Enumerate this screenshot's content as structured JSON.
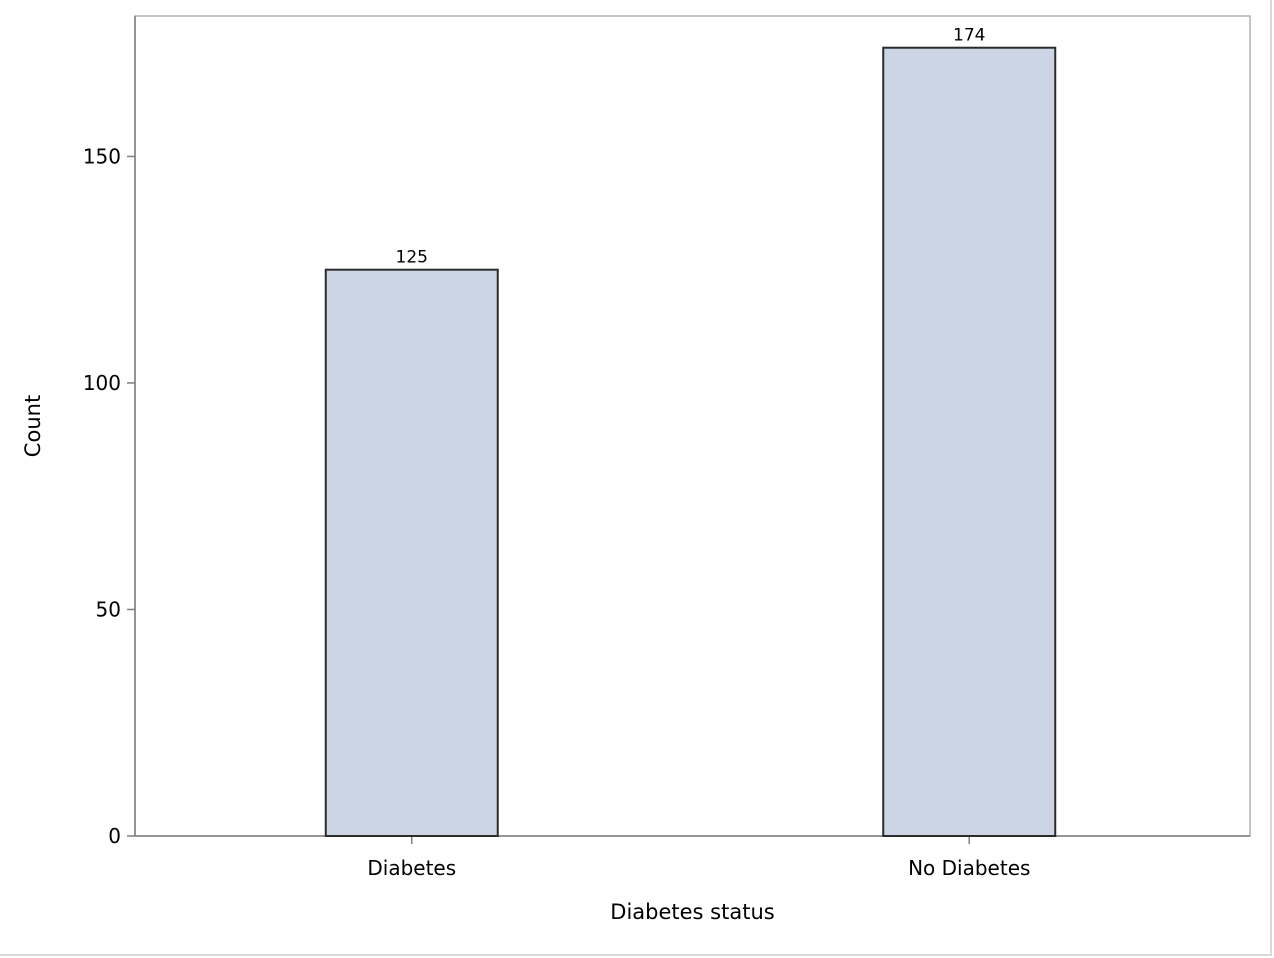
{
  "chart_data": {
    "type": "bar",
    "categories": [
      "Diabetes",
      "No Diabetes"
    ],
    "values": [
      125,
      174
    ],
    "data_labels": [
      "125",
      "174"
    ],
    "xlabel": "Diabetes status",
    "ylabel": "Count",
    "y_ticks": [
      0,
      50,
      100,
      150
    ],
    "y_tick_labels": [
      "0",
      "50",
      "100",
      "150"
    ],
    "ylim": [
      0,
      181
    ],
    "grid": false,
    "legend": "none",
    "colors": {
      "bar_fill": "#cbd5e3",
      "bar_stroke": "#2b2b2b",
      "axis": "#7f7f7f",
      "frame": "#b0b0b0"
    }
  }
}
